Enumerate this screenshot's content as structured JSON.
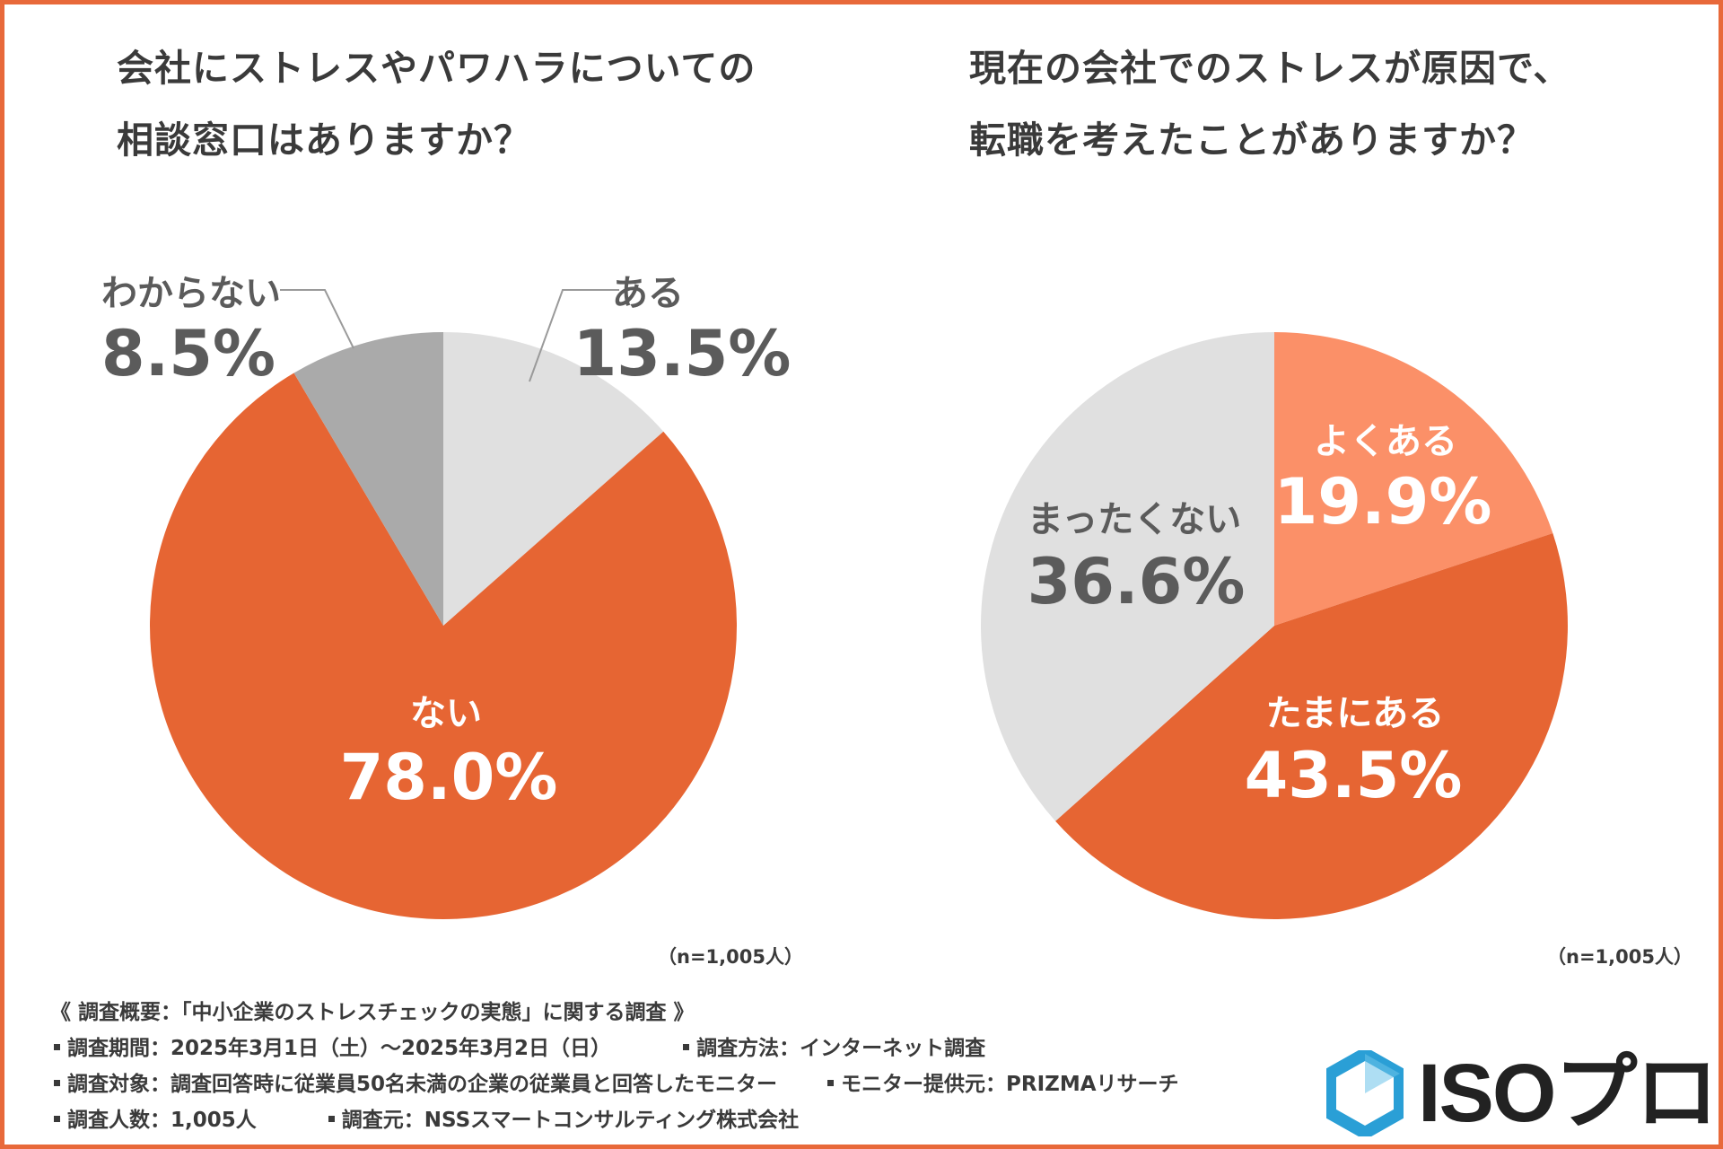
{
  "chart_data": [
    {
      "type": "pie",
      "title": "会社にストレスやパワハラについての相談窓口はありますか？",
      "title_lines": [
        "会社にストレスやパワハラについての",
        "相談窓口はありますか？"
      ],
      "slices": [
        {
          "label": "ある",
          "value": 13.5,
          "value_text": "13.5%",
          "color": "#e0e0e0",
          "text_color": "#5b5b5b"
        },
        {
          "label": "ない",
          "value": 78.0,
          "value_text": "78.0%",
          "color": "#e66533",
          "text_color": "#ffffff"
        },
        {
          "label": "わからない",
          "value": 8.5,
          "value_text": "8.5%",
          "color": "#aaaaaa",
          "text_color": "#5b5b5b"
        }
      ],
      "sample_note": "（n=1,005人）"
    },
    {
      "type": "pie",
      "title": "現在の会社でのストレスが原因で、転職を考えたことがありますか？",
      "title_lines": [
        "現在の会社でのストレスが原因で、",
        "転職を考えたことがありますか？"
      ],
      "slices": [
        {
          "label": "よくある",
          "value": 19.9,
          "value_text": "19.9%",
          "color": "#fb9068",
          "text_color": "#ffffff"
        },
        {
          "label": "たまにある",
          "value": 43.5,
          "value_text": "43.5%",
          "color": "#e66533",
          "text_color": "#ffffff"
        },
        {
          "label": "まったくない",
          "value": 36.6,
          "value_text": "36.6%",
          "color": "#e0e0e0",
          "text_color": "#5b5b5b"
        }
      ],
      "sample_note": "（n=1,005人）"
    }
  ],
  "footer": {
    "heading": "《 調査概要：「中小企業のストレスチェックの実態」に関する調査 》",
    "period": "調査期間：2025年3月1日（土）～2025年3月2日（日）",
    "method": "調査方法：インターネット調査",
    "target": "調査対象：調査回答時に従業員50名未満の企業の従業員と回答したモニター",
    "provider": "モニター提供元：PRIZMAリサーチ",
    "count": "調査人数：1,005人",
    "source": "調査元：NSSスマートコンサルティング株式会社"
  },
  "brand": {
    "name": "ISOプロ",
    "icon": "hexagon-logo-icon",
    "color": "#2a9fd6"
  },
  "colors": {
    "frame": "#e8693a",
    "text": "#3a3a3a"
  }
}
